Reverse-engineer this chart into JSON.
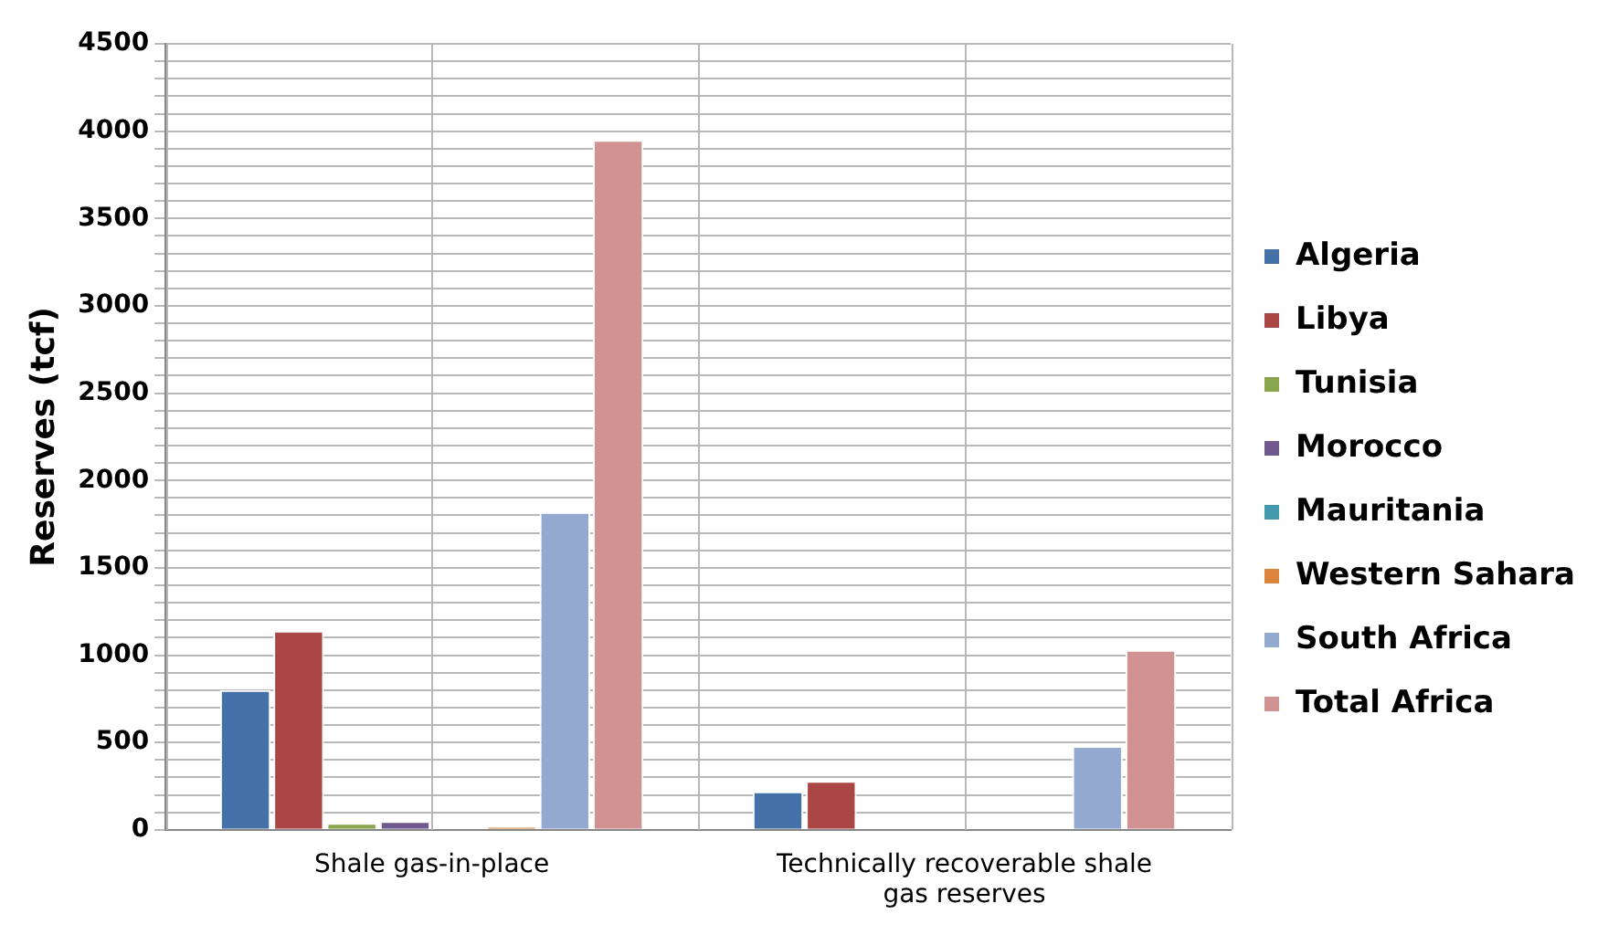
{
  "chart_data": {
    "type": "bar",
    "ylabel": "Reserves (tcf)",
    "categories": [
      "Shale gas-in-place",
      "Technically recoverable shale gas reserves"
    ],
    "series": [
      {
        "name": "Algeria",
        "color": "#4472a8",
        "values": [
          800,
          220
        ]
      },
      {
        "name": "Libya",
        "color": "#aa4644",
        "values": [
          1140,
          280
        ]
      },
      {
        "name": "Tunisia",
        "color": "#89a54e",
        "values": [
          40,
          null
        ]
      },
      {
        "name": "Morocco",
        "color": "#71588f",
        "values": [
          50,
          null
        ]
      },
      {
        "name": "Mauritania",
        "color": "#4198af",
        "values": [
          0,
          0
        ]
      },
      {
        "name": "Western Sahara",
        "color": "#db843d",
        "values": [
          20,
          null
        ]
      },
      {
        "name": "South Africa",
        "color": "#93a9cf",
        "values": [
          1820,
          480
        ]
      },
      {
        "name": "Total Africa",
        "color": "#d19392",
        "values": [
          3950,
          1030
        ]
      }
    ],
    "ylim": [
      0,
      4500
    ],
    "yticks": [
      0,
      {
        "value": 100,
        "label": null
      },
      {
        "value": 200,
        "label": null
      },
      {
        "value": 300,
        "label": null
      },
      {
        "value": 400,
        "label": null
      },
      500,
      {
        "value": 600,
        "label": null
      },
      {
        "value": 700,
        "label": null
      },
      {
        "value": 800,
        "label": null
      },
      {
        "value": 900,
        "label": null
      },
      1000,
      {
        "value": 1100,
        "label": null
      },
      {
        "value": 1200,
        "label": null
      },
      {
        "value": 1300,
        "label": null
      },
      {
        "value": 1400,
        "label": null
      },
      1500,
      {
        "value": 1600,
        "label": null
      },
      {
        "value": 1700,
        "label": null
      },
      {
        "value": 1800,
        "label": null
      },
      {
        "value": 1900,
        "label": null
      },
      2000,
      {
        "value": 2100,
        "label": null
      },
      {
        "value": 2200,
        "label": null
      },
      {
        "value": 2300,
        "label": null
      },
      {
        "value": 2400,
        "label": null
      },
      2500,
      {
        "value": 2600,
        "label": null
      },
      {
        "value": 2700,
        "label": null
      },
      {
        "value": 2800,
        "label": null
      },
      {
        "value": 2900,
        "label": null
      },
      3000,
      {
        "value": 3100,
        "label": null
      },
      {
        "value": 3200,
        "label": null
      },
      {
        "value": 3300,
        "label": null
      },
      {
        "value": 3400,
        "label": null
      },
      3500,
      {
        "value": 3600,
        "label": null
      },
      {
        "value": 3700,
        "label": null
      },
      {
        "value": 3800,
        "label": null
      },
      {
        "value": 3900,
        "label": null
      },
      4000,
      {
        "value": 4100,
        "label": null
      },
      {
        "value": 4200,
        "label": null
      },
      {
        "value": 4300,
        "label": null
      },
      {
        "value": 4400,
        "label": null
      },
      4500
    ],
    "grid": true,
    "legend": "right"
  }
}
